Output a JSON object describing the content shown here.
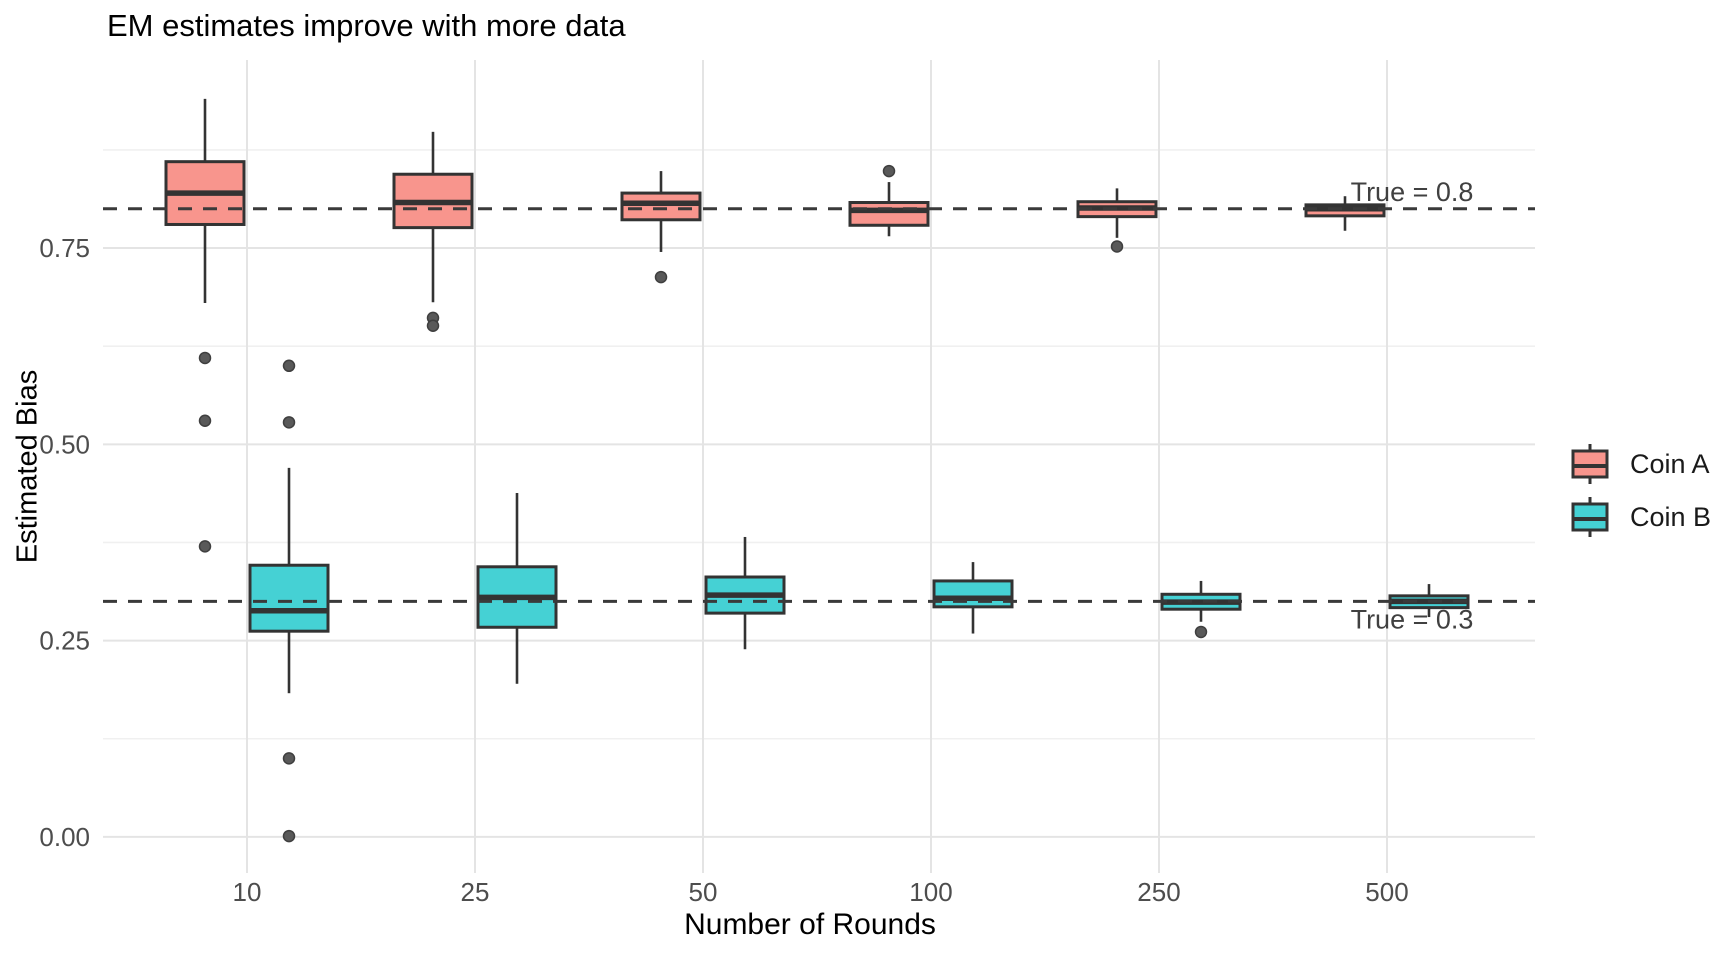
{
  "chart_data": {
    "type": "boxplot",
    "title": "EM estimates improve with more data",
    "xlabel": "Number of Rounds",
    "ylabel": "Estimated Bias",
    "categories": [
      "10",
      "25",
      "50",
      "100",
      "250",
      "500"
    ],
    "y_ticks": [
      {
        "value": 0.0,
        "label": "0.00"
      },
      {
        "value": 0.25,
        "label": "0.25"
      },
      {
        "value": 0.5,
        "label": "0.50"
      },
      {
        "value": 0.75,
        "label": "0.75"
      }
    ],
    "y_minor_ticks": [
      0.125,
      0.375,
      0.625,
      0.875
    ],
    "ylim": [
      -0.046,
      0.9895
    ],
    "grid": true,
    "legend_position": "right",
    "series": [
      {
        "name": "Coin A",
        "fill": "#F8958D",
        "boxes": [
          {
            "category": "10",
            "whislo": 0.68,
            "q1": 0.78,
            "med": 0.82,
            "q3": 0.86,
            "whishi": 0.94,
            "outliers": [
              0.61,
              0.53,
              0.37
            ]
          },
          {
            "category": "25",
            "whislo": 0.681,
            "q1": 0.776,
            "med": 0.808,
            "q3": 0.844,
            "whishi": 0.898,
            "outliers": [
              0.661,
              0.651
            ]
          },
          {
            "category": "50",
            "whislo": 0.745,
            "q1": 0.786,
            "med": 0.807,
            "q3": 0.82,
            "whishi": 0.848,
            "outliers": [
              0.713
            ]
          },
          {
            "category": "100",
            "whislo": 0.765,
            "q1": 0.779,
            "med": 0.798,
            "q3": 0.808,
            "whishi": 0.834,
            "outliers": [
              0.848
            ]
          },
          {
            "category": "250",
            "whislo": 0.763,
            "q1": 0.79,
            "med": 0.801,
            "q3": 0.809,
            "whishi": 0.826,
            "outliers": [
              0.752
            ]
          },
          {
            "category": "500",
            "whislo": 0.772,
            "q1": 0.791,
            "med": 0.8,
            "q3": 0.805,
            "whishi": 0.816,
            "outliers": []
          }
        ]
      },
      {
        "name": "Coin B",
        "fill": "#45D1D4",
        "boxes": [
          {
            "category": "10",
            "whislo": 0.183,
            "q1": 0.262,
            "med": 0.288,
            "q3": 0.346,
            "whishi": 0.47,
            "outliers": [
              0.6,
              0.528,
              0.1,
              0.001
            ]
          },
          {
            "category": "25",
            "whislo": 0.195,
            "q1": 0.267,
            "med": 0.305,
            "q3": 0.344,
            "whishi": 0.438,
            "outliers": []
          },
          {
            "category": "50",
            "whislo": 0.239,
            "q1": 0.285,
            "med": 0.308,
            "q3": 0.331,
            "whishi": 0.382,
            "outliers": []
          },
          {
            "category": "100",
            "whislo": 0.259,
            "q1": 0.293,
            "med": 0.304,
            "q3": 0.326,
            "whishi": 0.35,
            "outliers": []
          },
          {
            "category": "250",
            "whislo": 0.274,
            "q1": 0.29,
            "med": 0.299,
            "q3": 0.309,
            "whishi": 0.326,
            "outliers": [
              0.261
            ]
          },
          {
            "category": "500",
            "whislo": 0.28,
            "q1": 0.292,
            "med": 0.3,
            "q3": 0.307,
            "whishi": 0.322,
            "outliers": []
          }
        ]
      }
    ],
    "reference_lines": [
      {
        "value": 0.8,
        "label": "True = 0.8",
        "label_side": "above"
      },
      {
        "value": 0.3,
        "label": "True = 0.3",
        "label_side": "below"
      }
    ],
    "colors": {
      "coin_a_fill": "#F8958D",
      "coin_b_fill": "#45D1D4",
      "box_border": "#333333",
      "outlier": "#595959",
      "reference_line": "#3a3a3a",
      "annotation_text": "#404040",
      "tick_text": "#4d4d4d",
      "grid_major": "#e4e4e4",
      "grid_minor": "#f0f0f0"
    }
  }
}
